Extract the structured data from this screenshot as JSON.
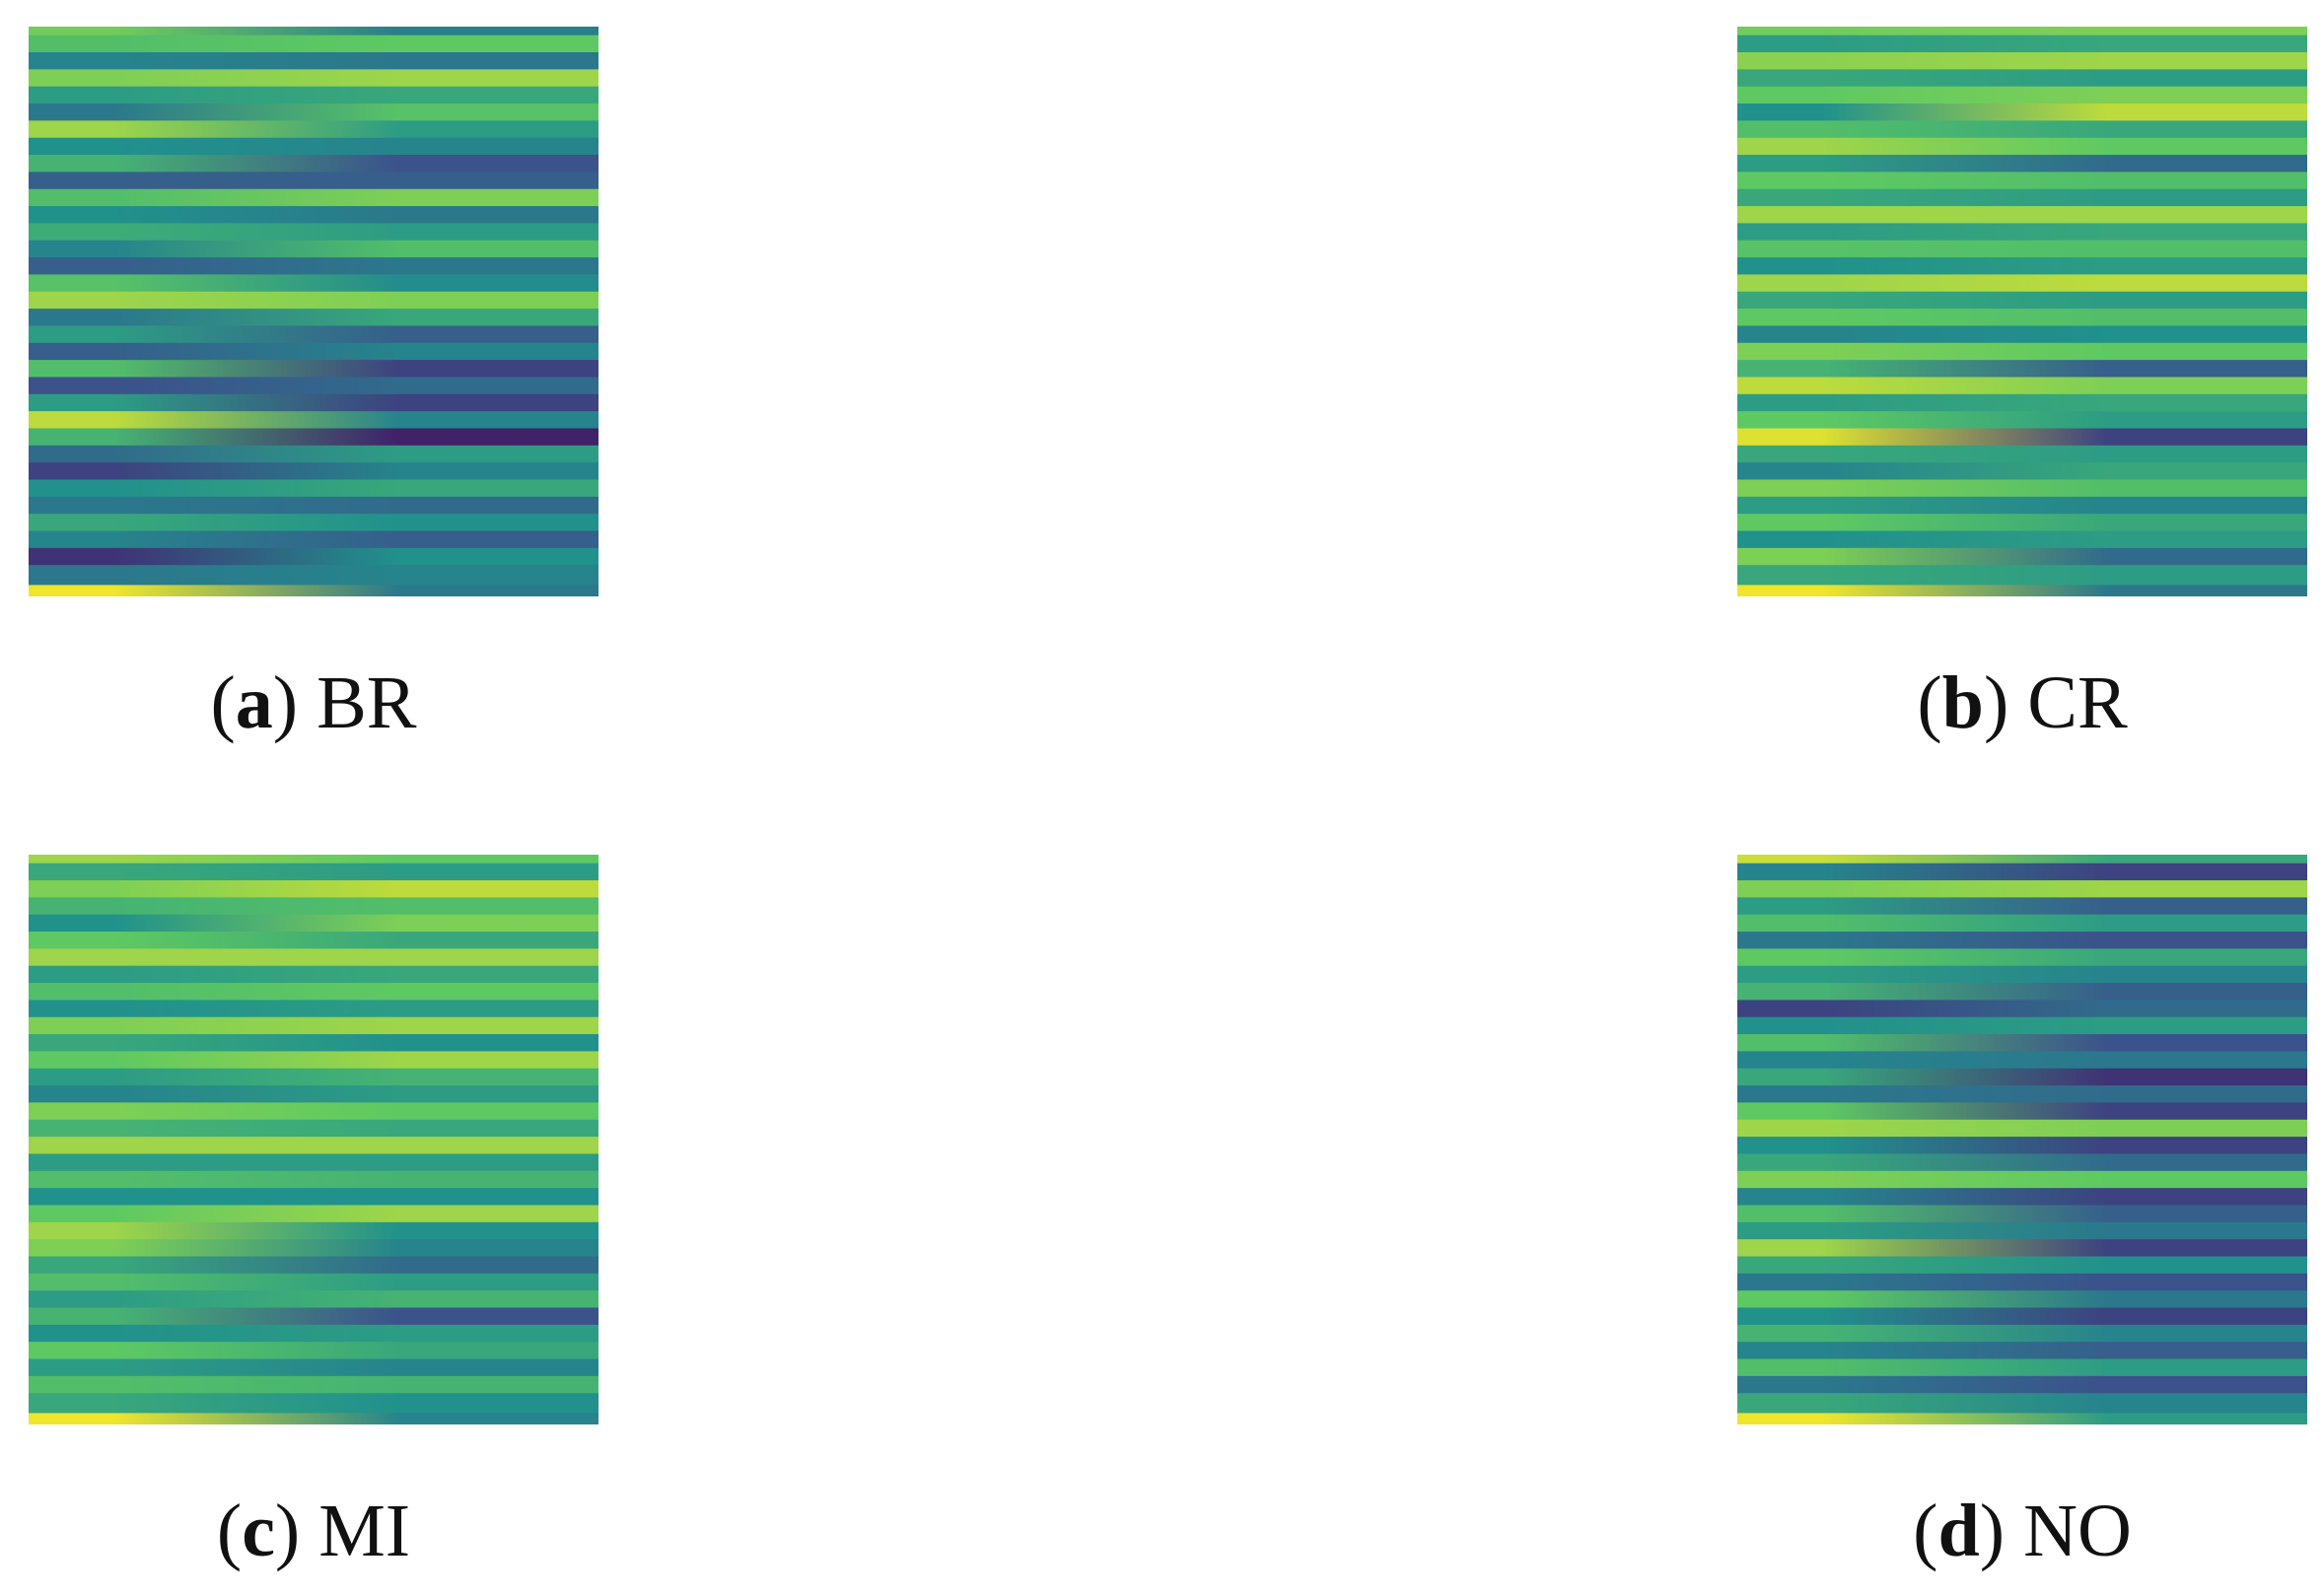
{
  "chart_data": {
    "type": "heatmap",
    "colormap": "viridis",
    "colormap_stops": [
      "#440154",
      "#3b528b",
      "#21918c",
      "#5ec962",
      "#fde725"
    ],
    "panels": [
      {
        "id": "a",
        "letter": "a",
        "label": "BR",
        "rows": [
          {
            "pos": 0.0,
            "a": 0.78,
            "b": 0.42
          },
          {
            "pos": 0.03,
            "a": 0.7,
            "b": 0.75
          },
          {
            "pos": 0.06,
            "a": 0.45,
            "b": 0.4
          },
          {
            "pos": 0.09,
            "a": 0.8,
            "b": 0.85
          },
          {
            "pos": 0.12,
            "a": 0.55,
            "b": 0.6
          },
          {
            "pos": 0.15,
            "a": 0.4,
            "b": 0.72
          },
          {
            "pos": 0.18,
            "a": 0.85,
            "b": 0.55
          },
          {
            "pos": 0.21,
            "a": 0.5,
            "b": 0.45
          },
          {
            "pos": 0.24,
            "a": 0.65,
            "b": 0.25
          },
          {
            "pos": 0.27,
            "a": 0.3,
            "b": 0.3
          },
          {
            "pos": 0.3,
            "a": 0.7,
            "b": 0.8
          },
          {
            "pos": 0.33,
            "a": 0.5,
            "b": 0.4
          },
          {
            "pos": 0.36,
            "a": 0.62,
            "b": 0.55
          },
          {
            "pos": 0.39,
            "a": 0.45,
            "b": 0.7
          },
          {
            "pos": 0.42,
            "a": 0.3,
            "b": 0.4
          },
          {
            "pos": 0.45,
            "a": 0.72,
            "b": 0.48
          },
          {
            "pos": 0.48,
            "a": 0.85,
            "b": 0.8
          },
          {
            "pos": 0.51,
            "a": 0.4,
            "b": 0.6
          },
          {
            "pos": 0.54,
            "a": 0.55,
            "b": 0.3
          },
          {
            "pos": 0.57,
            "a": 0.3,
            "b": 0.45
          },
          {
            "pos": 0.6,
            "a": 0.7,
            "b": 0.2
          },
          {
            "pos": 0.63,
            "a": 0.25,
            "b": 0.35
          },
          {
            "pos": 0.66,
            "a": 0.55,
            "b": 0.2
          },
          {
            "pos": 0.69,
            "a": 0.9,
            "b": 0.45
          },
          {
            "pos": 0.72,
            "a": 0.65,
            "b": 0.1
          },
          {
            "pos": 0.75,
            "a": 0.35,
            "b": 0.55
          },
          {
            "pos": 0.78,
            "a": 0.2,
            "b": 0.45
          },
          {
            "pos": 0.81,
            "a": 0.5,
            "b": 0.6
          },
          {
            "pos": 0.84,
            "a": 0.4,
            "b": 0.35
          },
          {
            "pos": 0.87,
            "a": 0.6,
            "b": 0.5
          },
          {
            "pos": 0.9,
            "a": 0.45,
            "b": 0.3
          },
          {
            "pos": 0.93,
            "a": 0.15,
            "b": 0.5
          },
          {
            "pos": 0.96,
            "a": 0.4,
            "b": 0.45
          },
          {
            "pos": 1.0,
            "a": 0.98,
            "b": 0.4
          }
        ]
      },
      {
        "id": "b",
        "letter": "b",
        "label": "CR",
        "rows": [
          {
            "pos": 0.0,
            "a": 0.78,
            "b": 0.8
          },
          {
            "pos": 0.03,
            "a": 0.55,
            "b": 0.6
          },
          {
            "pos": 0.06,
            "a": 0.82,
            "b": 0.85
          },
          {
            "pos": 0.09,
            "a": 0.6,
            "b": 0.55
          },
          {
            "pos": 0.12,
            "a": 0.75,
            "b": 0.8
          },
          {
            "pos": 0.15,
            "a": 0.5,
            "b": 0.9
          },
          {
            "pos": 0.18,
            "a": 0.7,
            "b": 0.6
          },
          {
            "pos": 0.21,
            "a": 0.85,
            "b": 0.75
          },
          {
            "pos": 0.24,
            "a": 0.55,
            "b": 0.35
          },
          {
            "pos": 0.27,
            "a": 0.75,
            "b": 0.7
          },
          {
            "pos": 0.3,
            "a": 0.6,
            "b": 0.55
          },
          {
            "pos": 0.33,
            "a": 0.85,
            "b": 0.85
          },
          {
            "pos": 0.36,
            "a": 0.55,
            "b": 0.6
          },
          {
            "pos": 0.39,
            "a": 0.72,
            "b": 0.7
          },
          {
            "pos": 0.42,
            "a": 0.5,
            "b": 0.55
          },
          {
            "pos": 0.45,
            "a": 0.85,
            "b": 0.9
          },
          {
            "pos": 0.48,
            "a": 0.6,
            "b": 0.55
          },
          {
            "pos": 0.51,
            "a": 0.75,
            "b": 0.7
          },
          {
            "pos": 0.54,
            "a": 0.45,
            "b": 0.5
          },
          {
            "pos": 0.57,
            "a": 0.8,
            "b": 0.75
          },
          {
            "pos": 0.6,
            "a": 0.65,
            "b": 0.3
          },
          {
            "pos": 0.63,
            "a": 0.9,
            "b": 0.8
          },
          {
            "pos": 0.66,
            "a": 0.55,
            "b": 0.6
          },
          {
            "pos": 0.69,
            "a": 0.75,
            "b": 0.55
          },
          {
            "pos": 0.72,
            "a": 0.95,
            "b": 0.2
          },
          {
            "pos": 0.75,
            "a": 0.6,
            "b": 0.55
          },
          {
            "pos": 0.78,
            "a": 0.45,
            "b": 0.6
          },
          {
            "pos": 0.81,
            "a": 0.8,
            "b": 0.7
          },
          {
            "pos": 0.84,
            "a": 0.55,
            "b": 0.45
          },
          {
            "pos": 0.87,
            "a": 0.75,
            "b": 0.6
          },
          {
            "pos": 0.9,
            "a": 0.5,
            "b": 0.55
          },
          {
            "pos": 0.93,
            "a": 0.8,
            "b": 0.35
          },
          {
            "pos": 0.96,
            "a": 0.6,
            "b": 0.55
          },
          {
            "pos": 1.0,
            "a": 0.98,
            "b": 0.4
          }
        ]
      },
      {
        "id": "c",
        "letter": "c",
        "label": "MI",
        "rows": [
          {
            "pos": 0.0,
            "a": 0.85,
            "b": 0.75
          },
          {
            "pos": 0.03,
            "a": 0.6,
            "b": 0.55
          },
          {
            "pos": 0.06,
            "a": 0.8,
            "b": 0.9
          },
          {
            "pos": 0.09,
            "a": 0.65,
            "b": 0.7
          },
          {
            "pos": 0.12,
            "a": 0.5,
            "b": 0.8
          },
          {
            "pos": 0.15,
            "a": 0.75,
            "b": 0.6
          },
          {
            "pos": 0.18,
            "a": 0.85,
            "b": 0.85
          },
          {
            "pos": 0.21,
            "a": 0.55,
            "b": 0.6
          },
          {
            "pos": 0.24,
            "a": 0.7,
            "b": 0.75
          },
          {
            "pos": 0.27,
            "a": 0.5,
            "b": 0.55
          },
          {
            "pos": 0.3,
            "a": 0.8,
            "b": 0.85
          },
          {
            "pos": 0.33,
            "a": 0.6,
            "b": 0.5
          },
          {
            "pos": 0.36,
            "a": 0.75,
            "b": 0.85
          },
          {
            "pos": 0.39,
            "a": 0.55,
            "b": 0.65
          },
          {
            "pos": 0.42,
            "a": 0.45,
            "b": 0.55
          },
          {
            "pos": 0.45,
            "a": 0.8,
            "b": 0.75
          },
          {
            "pos": 0.48,
            "a": 0.65,
            "b": 0.6
          },
          {
            "pos": 0.51,
            "a": 0.85,
            "b": 0.85
          },
          {
            "pos": 0.54,
            "a": 0.55,
            "b": 0.55
          },
          {
            "pos": 0.57,
            "a": 0.7,
            "b": 0.65
          },
          {
            "pos": 0.6,
            "a": 0.5,
            "b": 0.5
          },
          {
            "pos": 0.63,
            "a": 0.75,
            "b": 0.85
          },
          {
            "pos": 0.66,
            "a": 0.85,
            "b": 0.5
          },
          {
            "pos": 0.69,
            "a": 0.8,
            "b": 0.45
          },
          {
            "pos": 0.72,
            "a": 0.6,
            "b": 0.35
          },
          {
            "pos": 0.75,
            "a": 0.7,
            "b": 0.55
          },
          {
            "pos": 0.78,
            "a": 0.55,
            "b": 0.65
          },
          {
            "pos": 0.81,
            "a": 0.65,
            "b": 0.25
          },
          {
            "pos": 0.84,
            "a": 0.5,
            "b": 0.55
          },
          {
            "pos": 0.87,
            "a": 0.75,
            "b": 0.6
          },
          {
            "pos": 0.9,
            "a": 0.55,
            "b": 0.45
          },
          {
            "pos": 0.93,
            "a": 0.7,
            "b": 0.65
          },
          {
            "pos": 0.96,
            "a": 0.6,
            "b": 0.5
          },
          {
            "pos": 1.0,
            "a": 0.98,
            "b": 0.45
          }
        ]
      },
      {
        "id": "d",
        "letter": "d",
        "label": "NO",
        "rows": [
          {
            "pos": 0.0,
            "a": 0.92,
            "b": 0.6
          },
          {
            "pos": 0.03,
            "a": 0.45,
            "b": 0.2
          },
          {
            "pos": 0.06,
            "a": 0.8,
            "b": 0.85
          },
          {
            "pos": 0.09,
            "a": 0.55,
            "b": 0.3
          },
          {
            "pos": 0.12,
            "a": 0.7,
            "b": 0.55
          },
          {
            "pos": 0.15,
            "a": 0.4,
            "b": 0.25
          },
          {
            "pos": 0.18,
            "a": 0.75,
            "b": 0.6
          },
          {
            "pos": 0.21,
            "a": 0.55,
            "b": 0.45
          },
          {
            "pos": 0.24,
            "a": 0.65,
            "b": 0.3
          },
          {
            "pos": 0.27,
            "a": 0.2,
            "b": 0.35
          },
          {
            "pos": 0.3,
            "a": 0.5,
            "b": 0.55
          },
          {
            "pos": 0.33,
            "a": 0.7,
            "b": 0.25
          },
          {
            "pos": 0.36,
            "a": 0.45,
            "b": 0.4
          },
          {
            "pos": 0.39,
            "a": 0.6,
            "b": 0.15
          },
          {
            "pos": 0.42,
            "a": 0.4,
            "b": 0.35
          },
          {
            "pos": 0.45,
            "a": 0.75,
            "b": 0.2
          },
          {
            "pos": 0.48,
            "a": 0.85,
            "b": 0.8
          },
          {
            "pos": 0.51,
            "a": 0.5,
            "b": 0.2
          },
          {
            "pos": 0.54,
            "a": 0.6,
            "b": 0.35
          },
          {
            "pos": 0.57,
            "a": 0.8,
            "b": 0.75
          },
          {
            "pos": 0.6,
            "a": 0.45,
            "b": 0.2
          },
          {
            "pos": 0.63,
            "a": 0.7,
            "b": 0.3
          },
          {
            "pos": 0.66,
            "a": 0.55,
            "b": 0.4
          },
          {
            "pos": 0.69,
            "a": 0.85,
            "b": 0.2
          },
          {
            "pos": 0.72,
            "a": 0.6,
            "b": 0.5
          },
          {
            "pos": 0.75,
            "a": 0.4,
            "b": 0.25
          },
          {
            "pos": 0.78,
            "a": 0.75,
            "b": 0.4
          },
          {
            "pos": 0.81,
            "a": 0.5,
            "b": 0.2
          },
          {
            "pos": 0.84,
            "a": 0.65,
            "b": 0.45
          },
          {
            "pos": 0.87,
            "a": 0.45,
            "b": 0.3
          },
          {
            "pos": 0.9,
            "a": 0.7,
            "b": 0.55
          },
          {
            "pos": 0.93,
            "a": 0.4,
            "b": 0.25
          },
          {
            "pos": 0.96,
            "a": 0.6,
            "b": 0.45
          },
          {
            "pos": 1.0,
            "a": 0.98,
            "b": 0.55
          }
        ]
      }
    ]
  }
}
